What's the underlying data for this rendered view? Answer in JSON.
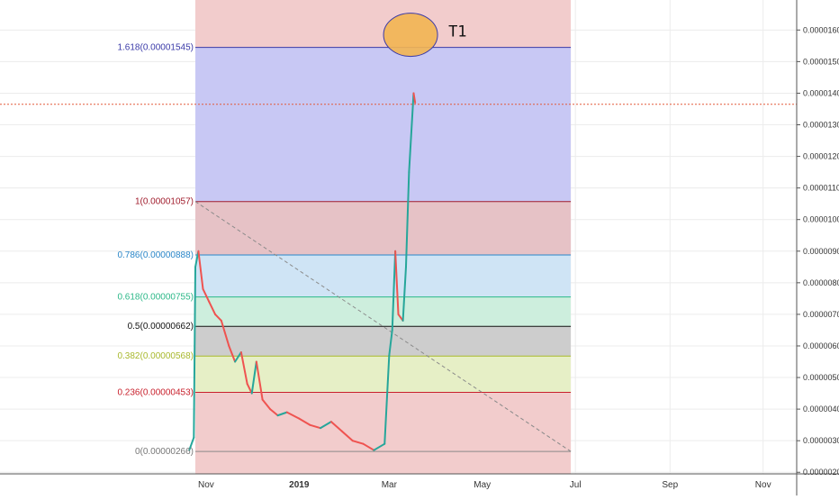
{
  "chart_data": {
    "type": "candlestick",
    "price_scale": {
      "min": 1.95e-06,
      "max": 1.695e-05,
      "tick_labels": [
        "0.00001600",
        "0.00001500",
        "0.00001400",
        "0.00001300",
        "0.00001200",
        "0.00001100",
        "0.00001000",
        "0.00000900",
        "0.00000800",
        "0.00000700",
        "0.00000600",
        "0.00000500",
        "0.00000400",
        "0.00000300",
        "0.00000200"
      ],
      "tick_values": [
        1.6e-05,
        1.5e-05,
        1.4e-05,
        1.3e-05,
        1.2e-05,
        1.1e-05,
        1e-05,
        9e-06,
        8e-06,
        7e-06,
        6e-06,
        5e-06,
        4e-06,
        3e-06,
        2e-06
      ]
    },
    "time_scale": {
      "labels": [
        "Nov",
        "2019",
        "Mar",
        "May",
        "Jul",
        "Sep",
        "Nov"
      ],
      "dates": [
        "2018-11-01",
        "2019-01-01",
        "2019-03-01",
        "2019-05-01",
        "2019-07-01",
        "2019-09-01",
        "2019-11-01"
      ],
      "range": [
        "2018-06-19",
        "2019-11-23"
      ]
    },
    "fibonacci": {
      "date_range": [
        "2018-10-25",
        "2019-06-28"
      ],
      "levels": [
        {
          "label": "1.618(0.00001545)",
          "value": 1.545e-05,
          "line_color": "#3a3aa8",
          "band_color": "#c8c8f4",
          "text_color": "#3a3aa8"
        },
        {
          "label": "1(0.00001057)",
          "value": 1.057e-05,
          "line_color": "#a01c2c",
          "band_color": "#e6c2c6",
          "text_color": "#a01c2c"
        },
        {
          "label": "0.786(0.00000888)",
          "value": 8.88e-06,
          "line_color": "#2a86c8",
          "band_color": "#cfe4f5",
          "text_color": "#2a86c8"
        },
        {
          "label": "0.618(0.00000755)",
          "value": 7.55e-06,
          "line_color": "#2cb888",
          "band_color": "#cdeedd",
          "text_color": "#2cb888"
        },
        {
          "label": "0.5(0.00000662)",
          "value": 6.62e-06,
          "line_color": "#111111",
          "band_color": "#cdcdcd",
          "text_color": "#111111"
        },
        {
          "label": "0.382(0.00000568)",
          "value": 5.68e-06,
          "line_color": "#a8b82c",
          "band_color": "#e6efc6",
          "text_color": "#a8b82c"
        },
        {
          "label": "0.236(0.00000453)",
          "value": 4.53e-06,
          "line_color": "#c8202c",
          "band_color": "#f2cccc",
          "text_color": "#c8202c"
        },
        {
          "label": "0(0.00000266)",
          "value": 2.66e-06,
          "line_color": "#8a8a8a",
          "band_color": "#f2cccc",
          "text_color": "#777777"
        }
      ],
      "range_background": "#f2cccc",
      "trend_line": {
        "from": [
          "2018-10-25",
          1.057e-05
        ],
        "to": [
          "2019-06-28",
          2.66e-06
        ],
        "color": "#8a8a8a",
        "style": "dashed"
      }
    },
    "current_price_line": {
      "value": 1.365e-05,
      "color": "#e35a3a"
    },
    "annotation": {
      "text": "T1",
      "date": "2019-03-15",
      "value": 1.585e-05,
      "fill": "#f2b552",
      "stroke": "#3a3aa8"
    },
    "colors": {
      "up": "#26a69a",
      "down": "#ef5350"
    },
    "series": [
      {
        "date": "2018-10-21",
        "close": 2.7e-06
      },
      {
        "date": "2018-10-24",
        "close": 3.1e-06
      },
      {
        "date": "2018-10-25",
        "close": 8.5e-06
      },
      {
        "date": "2018-10-27",
        "close": 9e-06
      },
      {
        "date": "2018-10-30",
        "close": 7.8e-06
      },
      {
        "date": "2018-11-03",
        "close": 7.4e-06
      },
      {
        "date": "2018-11-07",
        "close": 7e-06
      },
      {
        "date": "2018-11-11",
        "close": 6.8e-06
      },
      {
        "date": "2018-11-16",
        "close": 6e-06
      },
      {
        "date": "2018-11-20",
        "close": 5.5e-06
      },
      {
        "date": "2018-11-24",
        "close": 5.8e-06
      },
      {
        "date": "2018-11-28",
        "close": 4.8e-06
      },
      {
        "date": "2018-12-01",
        "close": 4.5e-06
      },
      {
        "date": "2018-12-04",
        "close": 5.5e-06
      },
      {
        "date": "2018-12-08",
        "close": 4.3e-06
      },
      {
        "date": "2018-12-13",
        "close": 4e-06
      },
      {
        "date": "2018-12-18",
        "close": 3.8e-06
      },
      {
        "date": "2018-12-24",
        "close": 3.9e-06
      },
      {
        "date": "2019-01-01",
        "close": 3.7e-06
      },
      {
        "date": "2019-01-08",
        "close": 3.5e-06
      },
      {
        "date": "2019-01-15",
        "close": 3.4e-06
      },
      {
        "date": "2019-01-22",
        "close": 3.6e-06
      },
      {
        "date": "2019-01-29",
        "close": 3.3e-06
      },
      {
        "date": "2019-02-05",
        "close": 3e-06
      },
      {
        "date": "2019-02-12",
        "close": 2.9e-06
      },
      {
        "date": "2019-02-19",
        "close": 2.7e-06
      },
      {
        "date": "2019-02-26",
        "close": 2.9e-06
      },
      {
        "date": "2019-03-01",
        "close": 5.7e-06
      },
      {
        "date": "2019-03-03",
        "close": 6.5e-06
      },
      {
        "date": "2019-03-05",
        "close": 9e-06
      },
      {
        "date": "2019-03-07",
        "close": 7e-06
      },
      {
        "date": "2019-03-10",
        "close": 6.8e-06
      },
      {
        "date": "2019-03-12",
        "close": 8.5e-06
      },
      {
        "date": "2019-03-14",
        "close": 1.15e-05
      },
      {
        "date": "2019-03-17",
        "close": 1.4e-05
      },
      {
        "date": "2019-03-18",
        "close": 1.37e-05
      }
    ]
  }
}
